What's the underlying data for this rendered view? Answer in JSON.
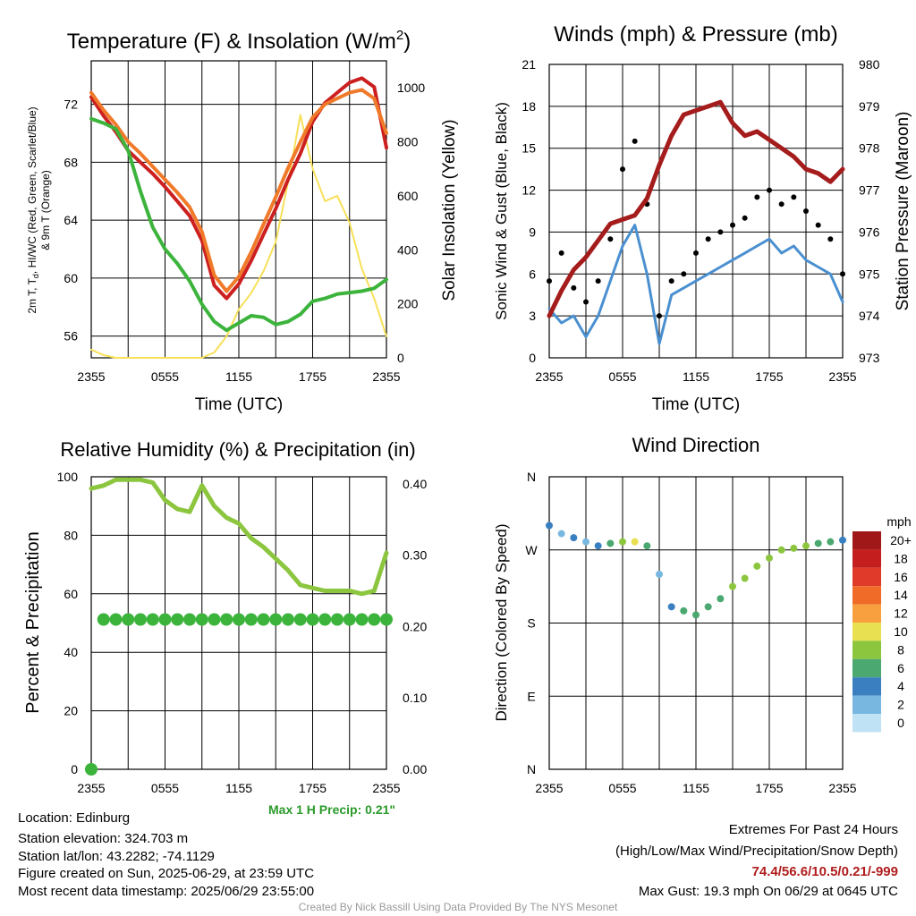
{
  "chart_data": [
    {
      "type": "line",
      "title": "Temperature (F) & Insolation (W/m2)",
      "title_main": "Temperature (F) & Insolation (W/m",
      "title_sup": "2",
      "title_end": ")",
      "xlabel": "Time (UTC)",
      "ylabel_left_line1": "2m T, T",
      "ylabel_left_sub": "d",
      "ylabel_left_line1_end": ", HI/WC (Red, Green, Scarlet/Blue)",
      "ylabel_left_line2": "& 9m T (Orange)",
      "ylabel_right": "Solar Insolation (Yellow)",
      "x_ticks": [
        "2355",
        "0555",
        "1155",
        "1755",
        "2355"
      ],
      "ylim": [
        54.5,
        75
      ],
      "y_ticks": [
        "56",
        "60",
        "64",
        "68",
        "72"
      ],
      "y2lim": [
        0,
        1100
      ],
      "y2_ticks": [
        "0",
        "200",
        "400",
        "600",
        "800",
        "1000"
      ],
      "x_hours": [
        0,
        1,
        2,
        3,
        4,
        5,
        6,
        7,
        8,
        9,
        10,
        11,
        12,
        13,
        14,
        15,
        16,
        17,
        18,
        19,
        20,
        21,
        22,
        23,
        24
      ],
      "series": [
        {
          "key": "temp_2m",
          "color": "#cc2020",
          "axis": "left",
          "values": [
            72.5,
            71.2,
            70.1,
            68.8,
            68.0,
            67.2,
            66.3,
            65.3,
            64.3,
            62.6,
            59.5,
            58.6,
            59.6,
            61.2,
            63.0,
            64.8,
            66.8,
            68.6,
            70.8,
            72.1,
            72.8,
            73.5,
            73.8,
            73.2,
            69.0
          ]
        },
        {
          "key": "temp_9m",
          "color": "#f07a2a",
          "axis": "left",
          "values": [
            72.8,
            71.6,
            70.6,
            69.4,
            68.6,
            67.7,
            66.8,
            65.9,
            64.9,
            63.2,
            60.2,
            59.1,
            60.1,
            61.8,
            63.7,
            65.6,
            67.6,
            69.4,
            71.1,
            72.0,
            72.4,
            72.8,
            73.0,
            72.4,
            70.0
          ]
        },
        {
          "key": "dewpoint",
          "color": "#3cb43c",
          "axis": "left",
          "values": [
            71.0,
            70.7,
            70.3,
            68.8,
            66.0,
            63.5,
            62.0,
            61.0,
            59.8,
            58.2,
            57.0,
            56.4,
            56.9,
            57.4,
            57.3,
            56.8,
            57.0,
            57.5,
            58.4,
            58.6,
            58.9,
            59.0,
            59.1,
            59.3,
            59.9
          ]
        },
        {
          "key": "insolation",
          "color": "#f7e05a",
          "axis": "right",
          "values": [
            30,
            10,
            0,
            0,
            0,
            0,
            0,
            0,
            0,
            0,
            20,
            80,
            180,
            240,
            320,
            430,
            650,
            900,
            700,
            580,
            600,
            500,
            330,
            220,
            80
          ]
        }
      ]
    },
    {
      "type": "scatter",
      "title": "Winds (mph) & Pressure (mb)",
      "xlabel": "Time (UTC)",
      "ylabel": "Sonic Wind & Gust (Blue, Black)",
      "ylabel_right": "Station Pressure (Maroon)",
      "x_ticks": [
        "2355",
        "0555",
        "1155",
        "1755",
        "2355"
      ],
      "ylim": [
        0,
        21
      ],
      "y_ticks": [
        "0",
        "3",
        "6",
        "9",
        "12",
        "15",
        "18",
        "21"
      ],
      "y2lim": [
        973,
        980
      ],
      "y2_ticks": [
        "973",
        "974",
        "975",
        "976",
        "977",
        "978",
        "979",
        "980"
      ],
      "x_hours": [
        0,
        1,
        2,
        3,
        4,
        5,
        6,
        7,
        8,
        9,
        10,
        11,
        12,
        13,
        14,
        15,
        16,
        17,
        18,
        19,
        20,
        21,
        22,
        23,
        24
      ],
      "series": [
        {
          "key": "pressure",
          "color": "#a51c1c",
          "axis": "right",
          "values": [
            974.0,
            974.6,
            975.1,
            975.4,
            975.8,
            976.2,
            976.3,
            976.4,
            976.8,
            977.6,
            978.3,
            978.8,
            978.9,
            979.0,
            979.1,
            978.6,
            978.3,
            978.4,
            978.2,
            978.0,
            977.8,
            977.5,
            977.4,
            977.2,
            977.5
          ]
        },
        {
          "key": "wind",
          "color": "#4a90d0",
          "axis": "left",
          "values": [
            3.5,
            2.5,
            3.0,
            1.5,
            3.0,
            5.5,
            8.0,
            9.5,
            6.0,
            1.0,
            4.5,
            5.0,
            5.5,
            6.0,
            6.5,
            7.0,
            7.5,
            8.0,
            8.5,
            7.5,
            8.0,
            7.0,
            6.5,
            6.0,
            4.0
          ]
        },
        {
          "key": "gust",
          "color": "#000000",
          "axis": "left",
          "values": [
            5.5,
            7.5,
            5.0,
            4.0,
            5.5,
            8.5,
            13.5,
            15.5,
            11.0,
            3.0,
            5.5,
            6.0,
            7.5,
            8.5,
            9.0,
            9.5,
            10.0,
            11.5,
            12.0,
            11.0,
            11.5,
            10.5,
            9.5,
            8.5,
            6.0
          ]
        }
      ],
      "max_gust": 19.3
    },
    {
      "type": "line",
      "title": "Relative Humidity (%) & Precipitation (in)",
      "ylabel": "Percent & Precipitation",
      "x_ticks": [
        "2355",
        "0555",
        "1155",
        "1755",
        "2355"
      ],
      "ylim": [
        0,
        100
      ],
      "y_ticks": [
        "0",
        "20",
        "40",
        "60",
        "80",
        "100"
      ],
      "y2lim": [
        0,
        0.41
      ],
      "y2_ticks": [
        "0.00",
        "0.10",
        "0.20",
        "0.30",
        "0.40"
      ],
      "x_hours": [
        0,
        1,
        2,
        3,
        4,
        5,
        6,
        7,
        8,
        9,
        10,
        11,
        12,
        13,
        14,
        15,
        16,
        17,
        18,
        19,
        20,
        21,
        22,
        23,
        24
      ],
      "series": [
        {
          "key": "rh",
          "color": "#8cc63f",
          "axis": "left",
          "values": [
            96,
            97,
            99,
            99,
            99,
            98,
            92,
            89,
            88,
            97,
            90,
            86,
            84,
            79,
            76,
            72,
            68,
            63,
            62,
            61,
            61,
            61,
            60,
            61,
            74
          ]
        },
        {
          "key": "precip",
          "color": "#3cb43c",
          "axis": "right",
          "values": [
            0.0,
            0.21,
            0.21,
            0.21,
            0.21,
            0.21,
            0.21,
            0.21,
            0.21,
            0.21,
            0.21,
            0.21,
            0.21,
            0.21,
            0.21,
            0.21,
            0.21,
            0.21,
            0.21,
            0.21,
            0.21,
            0.21,
            0.21,
            0.21,
            0.21
          ]
        }
      ],
      "max_precip_label": "Max 1 H Precip: 0.21\""
    },
    {
      "type": "scatter",
      "title": "Wind Direction",
      "ylabel": "Direction (Colored By Speed)",
      "x_ticks": [
        "2355",
        "0555",
        "1155",
        "1755",
        "2355"
      ],
      "y_ticks": [
        "N",
        "E",
        "S",
        "W",
        "N"
      ],
      "ylim": [
        0,
        360
      ],
      "x_hours": [
        0,
        1,
        2,
        3,
        4,
        5,
        6,
        7,
        8,
        9,
        10,
        11,
        12,
        13,
        14,
        15,
        16,
        17,
        18,
        19,
        20,
        21,
        22,
        23,
        24
      ],
      "direction": [
        300,
        290,
        285,
        280,
        275,
        278,
        280,
        280,
        275,
        240,
        200,
        195,
        190,
        200,
        210,
        225,
        235,
        250,
        260,
        270,
        272,
        275,
        278,
        280,
        282
      ],
      "speed": [
        3,
        2,
        3,
        1,
        3,
        5,
        8,
        9,
        6,
        1,
        4,
        5,
        5,
        6,
        6,
        7,
        7,
        8,
        8,
        7,
        8,
        7,
        6,
        6,
        4
      ],
      "colorbar_title": "mph",
      "colorbar_labels": [
        "20+",
        "18",
        "16",
        "14",
        "12",
        "10",
        "8",
        "6",
        "4",
        "2",
        "0"
      ],
      "colorbar_colors": [
        "#a01818",
        "#c41e1e",
        "#e03a2a",
        "#f06a28",
        "#f8a040",
        "#e8e050",
        "#8cc63f",
        "#4aa870",
        "#3a80c0",
        "#78b8e0",
        "#bfe2f5"
      ]
    }
  ],
  "info": {
    "location": "Location: Edinburg",
    "elevation": "Station elevation: 324.703 m",
    "latlon": "Station lat/lon: 43.2282; -74.1129",
    "created": "Figure created on Sun, 2025-06-29, at 23:59 UTC",
    "recent": "Most recent data timestamp: 2025/06/29 23:55:00"
  },
  "extremes": {
    "title": "Extremes For Past 24 Hours",
    "legend": "(High/Low/Max Wind/Precipitation/Snow Depth)",
    "values": "74.4/56.6/10.5/0.21/-999",
    "max_gust": "Max Gust: 19.3 mph On 06/29 at 0645 UTC"
  },
  "credit": "Created By Nick Bassill Using Data Provided By The NYS Mesonet"
}
